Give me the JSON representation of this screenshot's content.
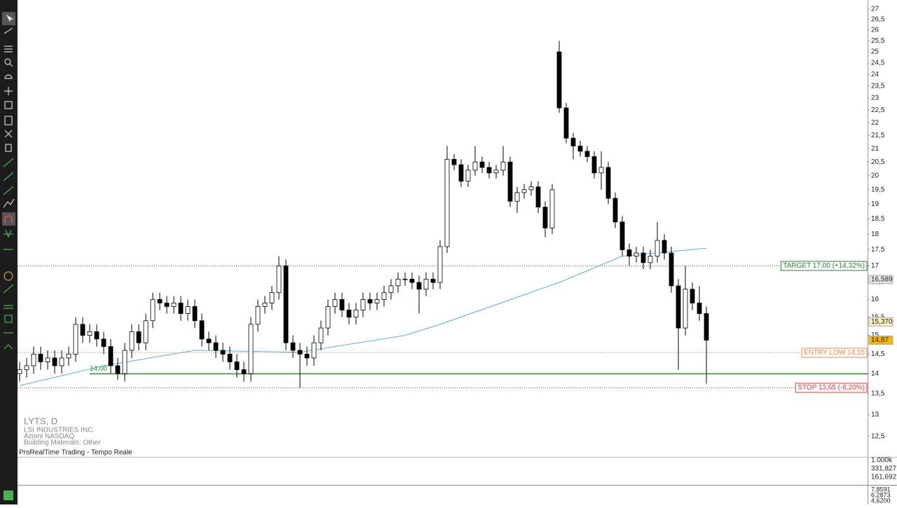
{
  "chart_data": {
    "type": "candlestick",
    "log_scale": true,
    "ylim": [
      12.05,
      27.45
    ],
    "yticks": [
      27,
      {
        "value": 26.5,
        "label": "26,5"
      },
      26,
      {
        "value": 25.5,
        "label": "25,5"
      },
      25,
      {
        "value": 24.5,
        "label": "24,5"
      },
      24,
      {
        "value": 23.5,
        "label": "23,5"
      },
      23,
      {
        "value": 22.5,
        "label": "22,5"
      },
      22,
      {
        "value": 21.5,
        "label": "21,5"
      },
      21,
      {
        "value": 20.5,
        "label": "20,5"
      },
      20,
      {
        "value": 19.5,
        "label": "19,5"
      },
      19,
      {
        "value": 18.5,
        "label": "18,5"
      },
      18,
      {
        "value": 17.5,
        "label": "17,5"
      },
      17,
      {
        "value": 16.5,
        "label": "16,5"
      },
      16,
      {
        "value": 15.5,
        "label": "15,5"
      },
      15,
      {
        "value": 14.5,
        "label": "14,5"
      },
      14,
      {
        "value": 13.5,
        "label": "13,5"
      },
      13,
      {
        "value": 12.5,
        "label": "12,5"
      }
    ],
    "up_color": "#ffffff",
    "down_color": "#000000",
    "open": [
      14.0,
      14.1,
      14.2,
      14.5,
      14.3,
      14.4,
      14.2,
      14.4,
      14.5,
      15.3,
      15.0,
      15.1,
      14.9,
      14.7,
      14.2,
      14.0,
      14.6,
      15.1,
      14.8,
      15.4,
      16.0,
      15.9,
      15.8,
      15.9,
      15.6,
      15.8,
      15.4,
      14.9,
      14.8,
      14.6,
      14.5,
      14.3,
      14.1,
      14.0,
      15.3,
      15.8,
      15.9,
      16.2,
      17.0,
      14.8,
      14.6,
      14.5,
      14.4,
      14.8,
      15.2,
      15.8,
      16.0,
      15.7,
      15.5,
      15.7,
      16.0,
      15.9,
      16.0,
      16.2,
      16.4,
      16.6,
      16.6,
      16.5,
      16.3,
      16.6,
      16.5,
      17.6,
      20.6,
      20.4,
      19.8,
      20.2,
      20.5,
      20.3,
      20.1,
      20.2,
      20.5,
      19.1,
      19.4,
      19.5,
      19.6,
      18.9,
      18.2,
      25.0,
      22.6,
      21.4,
      21.1,
      20.9,
      20.7,
      20.1,
      20.3,
      19.2,
      18.4,
      17.5,
      17.3,
      17.4,
      17.1,
      17.3,
      17.8,
      17.4,
      16.4,
      15.2,
      16.3,
      15.9,
      15.6
    ],
    "high": [
      14.3,
      14.4,
      14.7,
      14.7,
      14.6,
      14.6,
      14.6,
      14.7,
      15.5,
      15.5,
      15.3,
      15.3,
      15.1,
      14.9,
      14.4,
      14.8,
      15.3,
      15.3,
      15.6,
      16.2,
      16.2,
      16.1,
      16.1,
      16.1,
      16.0,
      16.0,
      15.6,
      15.1,
      15.0,
      14.8,
      14.7,
      14.5,
      14.3,
      15.5,
      16.0,
      16.1,
      16.4,
      17.3,
      17.2,
      15.0,
      14.8,
      14.7,
      15.0,
      15.4,
      16.0,
      16.2,
      16.2,
      15.9,
      15.9,
      16.2,
      16.2,
      16.2,
      16.4,
      16.6,
      16.8,
      16.8,
      16.8,
      16.7,
      16.8,
      16.8,
      17.8,
      21.1,
      20.8,
      20.6,
      20.4,
      21.1,
      20.7,
      20.5,
      20.4,
      21.1,
      20.7,
      19.6,
      19.7,
      19.8,
      19.8,
      19.1,
      19.7,
      25.5,
      22.8,
      21.6,
      21.3,
      21.1,
      20.9,
      20.9,
      20.5,
      19.4,
      18.6,
      17.7,
      17.6,
      17.6,
      17.5,
      18.4,
      18.0,
      17.6,
      16.6,
      17.0,
      16.5,
      16.4,
      15.8
    ],
    "low": [
      13.8,
      13.9,
      14.0,
      14.1,
      14.1,
      14.0,
      14.0,
      14.2,
      14.3,
      14.8,
      14.8,
      14.7,
      14.5,
      14.0,
      13.85,
      13.8,
      14.4,
      14.6,
      14.6,
      15.2,
      15.7,
      15.6,
      15.6,
      15.4,
      15.4,
      15.2,
      14.7,
      14.6,
      14.4,
      14.3,
      14.1,
      13.9,
      13.8,
      13.8,
      15.1,
      15.6,
      15.7,
      16.0,
      14.6,
      14.4,
      13.65,
      14.2,
      14.2,
      14.6,
      15.0,
      15.6,
      15.5,
      15.3,
      15.3,
      15.5,
      15.7,
      15.7,
      15.8,
      16.0,
      16.2,
      16.4,
      16.3,
      15.6,
      16.1,
      16.3,
      16.3,
      17.4,
      20.2,
      19.6,
      19.6,
      20.0,
      20.1,
      19.9,
      19.9,
      20.0,
      18.9,
      18.7,
      19.2,
      19.3,
      18.7,
      17.9,
      18.0,
      22.4,
      21.2,
      20.6,
      20.7,
      20.5,
      19.9,
      19.5,
      19.0,
      18.2,
      17.3,
      17.0,
      17.1,
      16.9,
      16.9,
      17.1,
      17.2,
      16.2,
      14.1,
      15.0,
      15.7,
      15.4,
      13.75
    ],
    "close": [
      14.1,
      14.2,
      14.5,
      14.3,
      14.4,
      14.2,
      14.4,
      14.5,
      15.3,
      15.0,
      15.1,
      14.9,
      14.7,
      14.2,
      14.0,
      14.6,
      15.1,
      14.8,
      15.4,
      16.0,
      15.9,
      15.8,
      15.9,
      15.6,
      15.8,
      15.4,
      14.9,
      14.8,
      14.6,
      14.5,
      14.3,
      14.1,
      14.0,
      15.3,
      15.8,
      15.9,
      16.2,
      17.0,
      14.8,
      14.6,
      14.5,
      14.4,
      14.8,
      15.2,
      15.8,
      16.0,
      15.7,
      15.5,
      15.7,
      16.0,
      15.9,
      16.0,
      16.2,
      16.4,
      16.6,
      16.6,
      16.5,
      16.3,
      16.6,
      16.5,
      17.6,
      20.6,
      20.4,
      19.8,
      20.2,
      20.5,
      20.3,
      20.1,
      20.2,
      20.5,
      19.1,
      19.4,
      19.5,
      19.6,
      18.9,
      18.2,
      19.5,
      22.6,
      21.4,
      21.1,
      20.9,
      20.7,
      20.1,
      20.3,
      19.2,
      18.4,
      17.5,
      17.3,
      17.4,
      17.1,
      17.3,
      17.8,
      17.4,
      16.4,
      15.2,
      16.3,
      15.9,
      15.6,
      14.87
    ],
    "overlay": {
      "color": "#5aaee0",
      "x": [
        0,
        12,
        25,
        40,
        55,
        60,
        77,
        86,
        98
      ],
      "values": [
        13.7,
        14.2,
        14.6,
        14.55,
        15.0,
        15.3,
        16.5,
        17.3,
        17.55
      ]
    },
    "levels": [
      {
        "value": 17,
        "label": "TARGET 17,00 (+14,32%)",
        "color": "#2e7d32",
        "style": "dotted"
      },
      {
        "value": 14.55,
        "label": "ENTRY LOW 14,55",
        "color": "#f08a4b",
        "style": "dotted"
      },
      {
        "value": 14,
        "label": "14,00",
        "color": "#2e8b2e",
        "style": "solid"
      },
      {
        "value": 13.65,
        "label": "STOP 13,65 (-8,20%)",
        "color": "#e53935",
        "style": "dotted"
      }
    ],
    "price_tags": [
      {
        "value": 16.589,
        "label": "16,589",
        "color": "#e6e6e6"
      },
      {
        "value": 15.37,
        "label": "15,370",
        "color": "#fff3c4"
      },
      {
        "value": 14.87,
        "label": "14,87",
        "color": "#f5b800"
      }
    ],
    "info": {
      "symbol": "LYTS, D",
      "company": "LSI INDUSTRIES INC.",
      "market": "Azioni NASDAQ",
      "sector": "Building Materials: Other",
      "feed": "ProRealTime Trading - Tempo Reale"
    },
    "volume_labels": [
      "1.000k",
      "331,827",
      "161,692"
    ],
    "indicator_labels": [
      "7,8591",
      "6,2873",
      "4,6200"
    ]
  }
}
